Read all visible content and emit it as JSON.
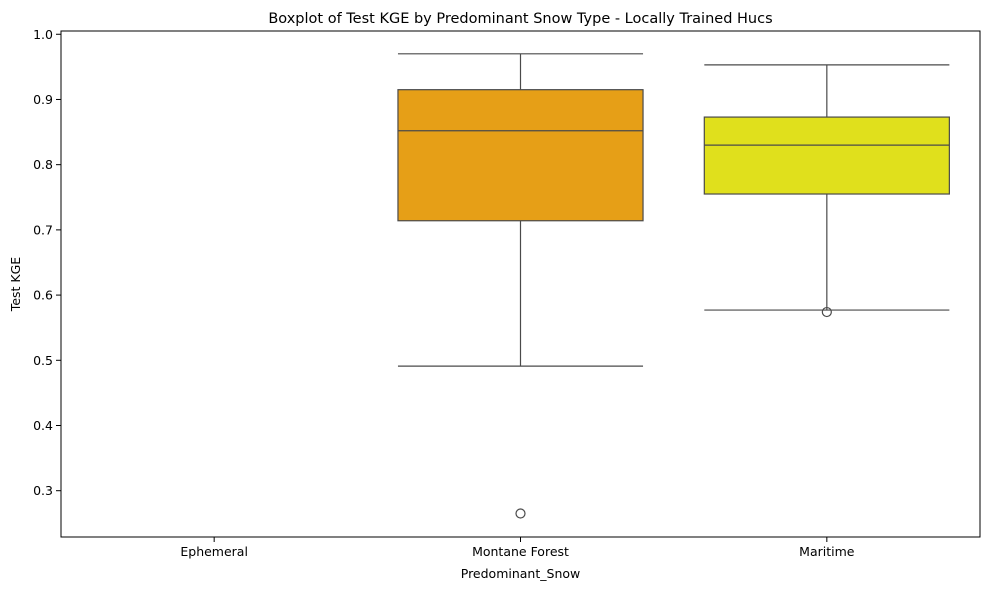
{
  "chart_data": {
    "type": "box",
    "title": "Boxplot of Test KGE by Predominant Snow Type - Locally Trained Hucs",
    "xlabel": "Predominant_Snow",
    "ylabel": "Test KGE",
    "ylim": [
      0.229,
      1.005
    ],
    "yticks": [
      0.3,
      0.4,
      0.5,
      0.6,
      0.7,
      0.8,
      0.9,
      1.0
    ],
    "ytick_labels": [
      "0.3",
      "0.4",
      "0.5",
      "0.6",
      "0.7",
      "0.8",
      "0.9",
      "1.0"
    ],
    "grid": false,
    "categories": [
      "Ephemeral",
      "Montane Forest",
      "Maritime"
    ],
    "boxes": [
      {
        "category": "Ephemeral",
        "empty": true
      },
      {
        "category": "Montane Forest",
        "color": "#E69F17",
        "whisker_low": 0.491,
        "q1": 0.714,
        "median": 0.852,
        "q3": 0.915,
        "whisker_high": 0.97,
        "outliers": [
          0.265
        ]
      },
      {
        "category": "Maritime",
        "color": "#E0E01C",
        "whisker_low": 0.577,
        "q1": 0.755,
        "median": 0.83,
        "q3": 0.873,
        "whisker_high": 0.953,
        "outliers": [
          0.574
        ]
      }
    ]
  }
}
